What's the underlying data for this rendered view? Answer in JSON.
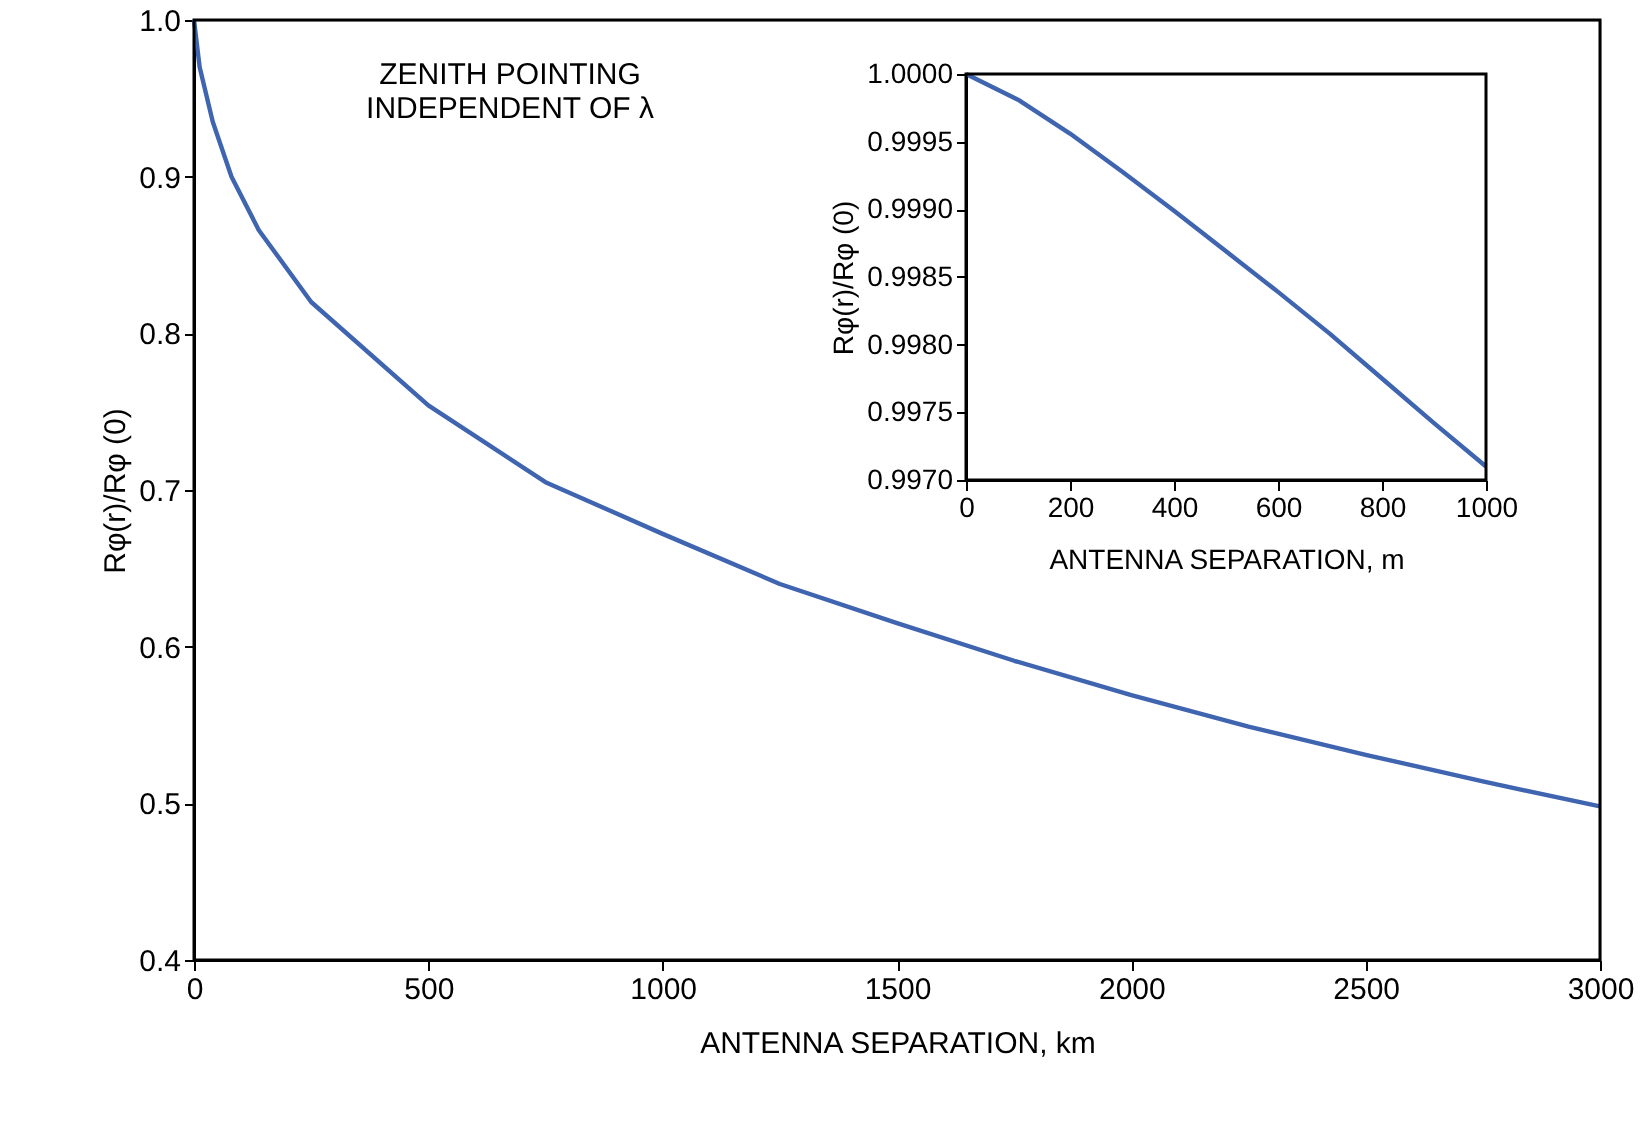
{
  "chart_data": [
    {
      "type": "line",
      "xlabel": "ANTENNA SEPARATION, km",
      "ylabel": "Rφ(r)/Rφ (0)",
      "annotations": [
        "ZENITH POINTING\nINDEPENDENT OF λ"
      ],
      "x": [
        0,
        12,
        40,
        80,
        138,
        250,
        500,
        750,
        1000,
        1250,
        1500,
        1750,
        2000,
        2250,
        2500,
        2750,
        3000
      ],
      "series": [
        {
          "color": "#3f64b0",
          "values": [
            1.0,
            0.97,
            0.935,
            0.9,
            0.866,
            0.82,
            0.754,
            0.705,
            0.672,
            0.64,
            0.615,
            0.591,
            0.569,
            0.549,
            0.531,
            0.514,
            0.498
          ]
        }
      ],
      "xlim": [
        0,
        3000
      ],
      "ylim": [
        0.4,
        1.0
      ],
      "xticks": [
        0,
        500,
        1000,
        1500,
        2000,
        2500,
        3000
      ],
      "yticks": [
        0.4,
        0.5,
        0.6,
        0.7,
        0.8,
        0.9,
        {
          "value": 1.0,
          "label": "1.0"
        }
      ]
    },
    {
      "type": "line",
      "xlabel": "ANTENNA SEPARATION, m",
      "ylabel": "Rφ(r)/Rφ (0)",
      "x": [
        0,
        100,
        200,
        300,
        400,
        500,
        600,
        700,
        800,
        900,
        1000
      ],
      "series": [
        {
          "color": "#3f64b0",
          "values": [
            1.0,
            0.99981,
            0.99956,
            0.99928,
            0.99899,
            0.99869,
            0.99839,
            0.99808,
            0.99775,
            0.99742,
            0.9971
          ]
        }
      ],
      "xlim": [
        0,
        1000
      ],
      "ylim": [
        0.997,
        1.0
      ],
      "xticks": [
        0,
        200,
        400,
        600,
        800,
        1000
      ],
      "yticks": [
        {
          "value": 0.997,
          "label": "0.9970"
        },
        0.9975,
        {
          "value": 0.998,
          "label": "0.9980"
        },
        0.9985,
        {
          "value": 0.999,
          "label": "0.9990"
        },
        0.9995,
        {
          "value": 1.0,
          "label": "1.0000"
        }
      ]
    }
  ]
}
